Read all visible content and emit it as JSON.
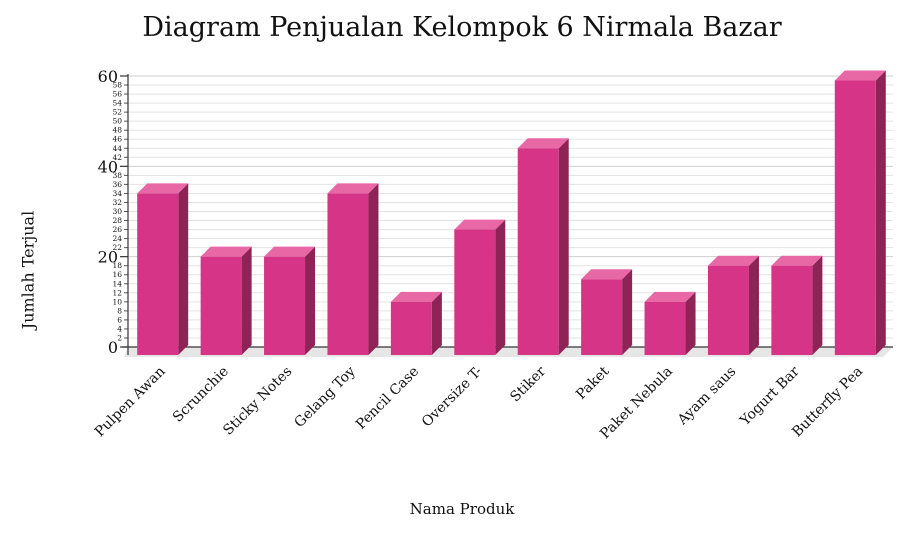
{
  "chart_data": {
    "type": "bar",
    "title": "Diagram Penjualan Kelompok 6 Nirmala Bazar",
    "xlabel": "Nama Produk",
    "ylabel": "Jumlah Terjual",
    "categories": [
      "Pulpen Awan",
      "Scrunchie",
      "Sticky Notes",
      "Gelang Toy",
      "Pencil Case",
      "Oversize T-",
      "Stiker",
      "Paket",
      "Paket Nebula",
      "Ayam saus",
      "Yogurt Bar",
      "Butterfly Pea"
    ],
    "values": [
      34,
      20,
      20,
      34,
      10,
      26,
      44,
      15,
      10,
      18,
      18,
      59
    ],
    "ylim": [
      0,
      60
    ],
    "major_ticks": [
      "0",
      "20",
      "40",
      "60"
    ],
    "minor_ticks": [
      "2",
      "4",
      "6",
      "8",
      "10",
      "12",
      "14",
      "16",
      "18",
      "22",
      "24",
      "26",
      "28",
      "30",
      "32",
      "34",
      "36",
      "38",
      "42",
      "44",
      "46",
      "48",
      "50",
      "52",
      "54",
      "56",
      "58"
    ],
    "grid": true,
    "legend": "none",
    "colors": {
      "bar_front": "#d63587",
      "bar_top": "#e868a6",
      "bar_side": "#8e2456",
      "floor": "#e6e6e6",
      "grid": "#e3e3e3"
    }
  }
}
